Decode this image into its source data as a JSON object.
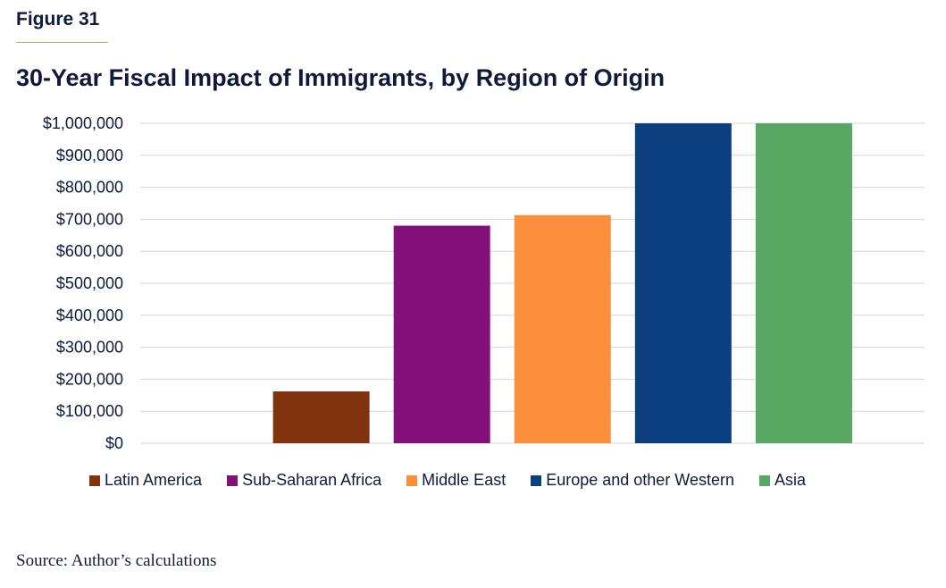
{
  "figure_label": "Figure 31",
  "chart_data": {
    "type": "bar",
    "title": "30-Year Fiscal Impact of Immigrants, by Region of Origin",
    "categories": [
      "Latin America",
      "Sub-Saharan Africa",
      "Middle East",
      "Europe and other Western",
      "Asia"
    ],
    "values": [
      162000,
      680000,
      713000,
      1000000,
      1000000
    ],
    "colors": [
      "#7f340f",
      "#84107a",
      "#fb8f3b",
      "#0b3f7e",
      "#58a863"
    ],
    "ylim": [
      0,
      1000000
    ],
    "y_ticks": [
      0,
      100000,
      200000,
      300000,
      400000,
      500000,
      600000,
      700000,
      800000,
      900000,
      1000000
    ],
    "y_tick_labels": [
      "$0",
      "$100,000",
      "$200,000",
      "$300,000",
      "$400,000",
      "$500,000",
      "$600,000",
      "$700,000",
      "$800,000",
      "$900,000",
      "$1,000,000"
    ],
    "xlabel": "",
    "ylabel": "",
    "grid": true,
    "legend_position": "bottom"
  },
  "source": "Source: Author’s calculations"
}
